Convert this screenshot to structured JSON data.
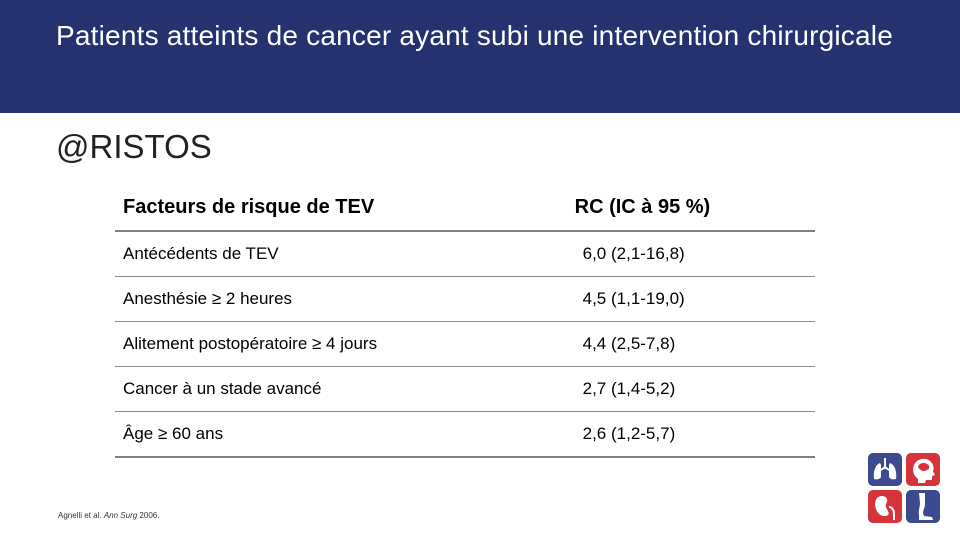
{
  "header": {
    "title": "Patients atteints de cancer ayant subi une intervention chirurgicale",
    "background": "#263270"
  },
  "subtitle": "@RISTOS",
  "table": {
    "columns": [
      "Facteurs de risque de TEV",
      "RC (IC à 95 %)"
    ],
    "rows": [
      {
        "factor": "Antécédents de TEV",
        "value": "6,0 (2,1-16,8)"
      },
      {
        "factor": "Anesthésie ≥ 2 heures",
        "value": "4,5 (1,1-19,0)"
      },
      {
        "factor": "Alitement postopératoire ≥ 4 jours",
        "value": "4,4 (2,5-7,8)"
      },
      {
        "factor": "Cancer à un stade avancé",
        "value": "2,7 (1,4-5,2)"
      },
      {
        "factor": "Âge ≥ 60 ans",
        "value": "2,6 (1,2-5,7)"
      }
    ]
  },
  "citation": {
    "authors": "Agnelli et al.",
    "journal": "Ann Surg",
    "year": "2006."
  },
  "logo": {
    "icons": [
      "lungs-icon",
      "head-brain-icon",
      "kidney-icon",
      "leg-icon"
    ],
    "colors": {
      "blue": "#3d4a8f",
      "red": "#d6333a"
    }
  }
}
